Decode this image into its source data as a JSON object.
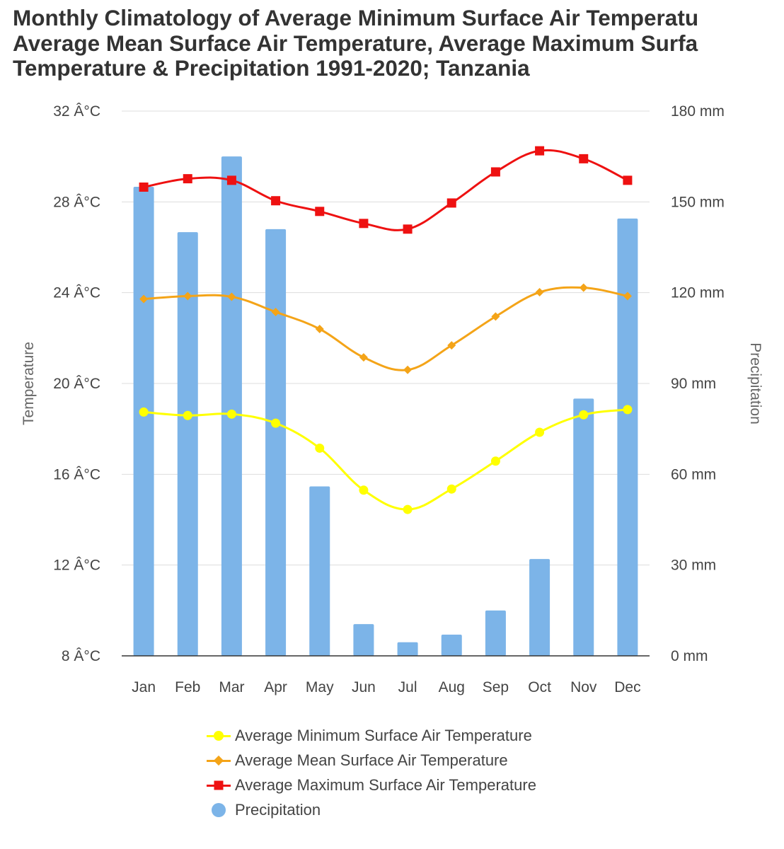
{
  "chart_data": {
    "type": "bar+line",
    "title_lines": [
      "Monthly Climatology of Average Minimum Surface Air Temperatu",
      "Average Mean Surface Air Temperature, Average Maximum Surfa",
      "Temperature & Precipitation 1991-2020; Tanzania"
    ],
    "categories": [
      "Jan",
      "Feb",
      "Mar",
      "Apr",
      "May",
      "Jun",
      "Jul",
      "Aug",
      "Sep",
      "Oct",
      "Nov",
      "Dec"
    ],
    "left_axis": {
      "label": "Temperature",
      "range": [
        8,
        32
      ],
      "tick_labels": [
        "8 Â°C",
        "12 Â°C",
        "16 Â°C",
        "20 Â°C",
        "24 Â°C",
        "28 Â°C",
        "32 Â°C"
      ],
      "tick_values": [
        8,
        12,
        16,
        20,
        24,
        28,
        32
      ]
    },
    "right_axis": {
      "label": "Precipitation",
      "range": [
        0,
        180
      ],
      "tick_labels": [
        "0 mm",
        "30 mm",
        "60 mm",
        "90 mm",
        "120 mm",
        "150 mm",
        "180 mm"
      ],
      "tick_values": [
        0,
        30,
        60,
        90,
        120,
        150,
        180
      ]
    },
    "series": [
      {
        "name": "Average Minimum Surface Air Temperature",
        "kind": "line",
        "axis": "left",
        "marker": "circle",
        "color": "#ffff00",
        "values": [
          18.74,
          18.59,
          18.65,
          18.25,
          17.15,
          15.3,
          14.45,
          15.35,
          16.58,
          17.85,
          18.62,
          18.85
        ]
      },
      {
        "name": "Average Mean Surface Air Temperature",
        "kind": "line",
        "axis": "left",
        "marker": "diamond",
        "color": "#f4a418",
        "values": [
          23.72,
          23.85,
          23.82,
          23.15,
          22.4,
          21.15,
          20.6,
          21.68,
          22.95,
          24.02,
          24.22,
          23.85
        ]
      },
      {
        "name": "Average Maximum Surface Air Temperature",
        "kind": "line",
        "axis": "left",
        "marker": "square",
        "color": "#ee1111",
        "values": [
          28.65,
          29.02,
          28.95,
          28.05,
          27.58,
          27.05,
          26.8,
          27.95,
          29.32,
          30.25,
          29.9,
          28.95
        ]
      },
      {
        "name": "Precipitation",
        "kind": "bar",
        "axis": "right",
        "marker": "circle",
        "color": "#7cb4e8",
        "values": [
          155,
          140,
          165,
          141,
          56,
          10.5,
          4.5,
          7,
          15,
          32,
          85,
          144.5
        ]
      }
    ],
    "legend_position": "bottom"
  }
}
